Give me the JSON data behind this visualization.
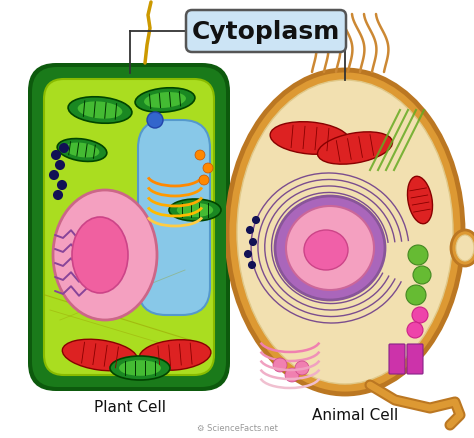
{
  "title": "Cytoplasm",
  "title_bg": "#cce4f5",
  "title_border": "#888888",
  "title_fontsize": 18,
  "label_plant": "Plant Cell",
  "label_animal": "Animal Cell",
  "label_fontsize": 11,
  "watermark": "ScienceFacts.net",
  "bg_color": "#ffffff",
  "plant_outer_color": "#1a7a1a",
  "plant_inner_color": "#aadd20",
  "plant_wall_color": "#0d5a0d",
  "vacuole_color": "#88c8e8",
  "plant_nucleus_color": "#f4a0c0",
  "plant_nucleus_border": "#cc6688",
  "plant_nucleolus_color": "#f060a0",
  "mito_color": "#dd2222",
  "mito_border": "#880000",
  "chloro_outer": "#1a8822",
  "chloro_inner": "#44bb33",
  "golgi_colors": [
    "#ff8800",
    "#ff9900",
    "#ffaa00",
    "#ffbb00",
    "#ffcc44"
  ],
  "er_color": "#884499",
  "ribo_color": "#111155",
  "animal_outer_color": "#dd9933",
  "animal_inner_color": "#f2e0b0",
  "animal_nucleus_outer": "#aa66bb",
  "animal_nucleus_color": "#f4a0c0",
  "animal_nucleolus_color": "#f060a8",
  "rough_er_color": "#663388",
  "green_vesicle": "#66bb33",
  "pink_vesicle": "#ee44aa",
  "cilia_color": "#cc8833",
  "tail_color": "#dd9933",
  "tail_border": "#bb7722",
  "label_color": "#111111",
  "line_color": "#333333",
  "box_line_color": "#555555"
}
